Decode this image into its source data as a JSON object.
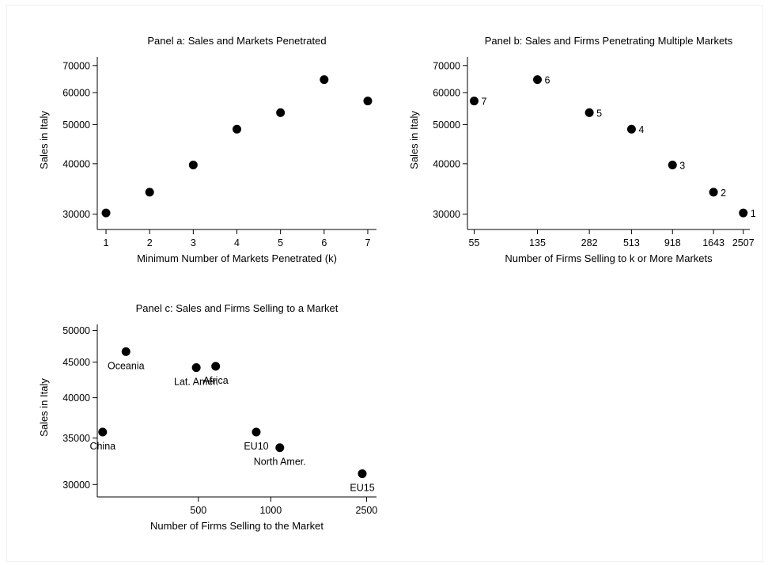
{
  "chart_data": [
    {
      "panel": "a",
      "type": "scatter",
      "title": "Panel a: Sales and Markets Penetrated",
      "xlabel": "Minimum Number of Markets Penetrated (k)",
      "ylabel": "Sales in Italy",
      "y_scale": "log",
      "xlim": [
        0.8,
        7.2
      ],
      "ylim": [
        28500,
        73500
      ],
      "xticks": [
        1,
        2,
        3,
        4,
        5,
        6,
        7
      ],
      "xtick_labels": [
        "1",
        "2",
        "3",
        "4",
        "5",
        "6",
        "7"
      ],
      "yticks": [
        30000,
        40000,
        50000,
        60000,
        70000
      ],
      "ytick_labels": [
        "30000",
        "40000",
        "50000",
        "60000",
        "70000"
      ],
      "points": [
        {
          "x": 1,
          "y": 30200
        },
        {
          "x": 2,
          "y": 34000
        },
        {
          "x": 3,
          "y": 39700
        },
        {
          "x": 4,
          "y": 48700
        },
        {
          "x": 5,
          "y": 53500
        },
        {
          "x": 6,
          "y": 64600
        },
        {
          "x": 7,
          "y": 57200
        }
      ]
    },
    {
      "panel": "b",
      "type": "scatter",
      "title": "Panel b: Sales and Firms Penetrating Multiple Markets",
      "xlabel": "Number of Firms Selling to k or More Markets",
      "ylabel": "Sales in Italy",
      "x_scale": "log",
      "y_scale": "log",
      "xlim": [
        50,
        2750
      ],
      "ylim": [
        28500,
        73500
      ],
      "xticks": [
        55,
        135,
        282,
        513,
        918,
        1643,
        2507
      ],
      "xtick_labels": [
        "55",
        "135",
        "282",
        "513",
        "918",
        "1643",
        "2507"
      ],
      "yticks": [
        30000,
        40000,
        50000,
        60000,
        70000
      ],
      "ytick_labels": [
        "30000",
        "40000",
        "50000",
        "60000",
        "70000"
      ],
      "points": [
        {
          "x": 2507,
          "y": 30200,
          "label": "1"
        },
        {
          "x": 1643,
          "y": 34000,
          "label": "2"
        },
        {
          "x": 918,
          "y": 39700,
          "label": "3"
        },
        {
          "x": 513,
          "y": 48700,
          "label": "4"
        },
        {
          "x": 282,
          "y": 53500,
          "label": "5"
        },
        {
          "x": 135,
          "y": 64600,
          "label": "6"
        },
        {
          "x": 55,
          "y": 57200,
          "label": "7"
        }
      ]
    },
    {
      "panel": "c",
      "type": "scatter",
      "title": "Panel c: Sales and Firms Selling to a Market",
      "xlabel": "Number of Firms Selling to the Market",
      "ylabel": "Sales in Italy",
      "x_scale": "log",
      "y_scale": "log",
      "xlim": [
        190,
        2750
      ],
      "ylim": [
        29400,
        51000
      ],
      "xticks": [
        500,
        1000,
        2500
      ],
      "xtick_labels": [
        "500",
        "1000",
        "2500"
      ],
      "yticks": [
        30000,
        35000,
        40000,
        45000,
        50000
      ],
      "ytick_labels": [
        "30000",
        "35000",
        "40000",
        "45000",
        "50000"
      ],
      "points": [
        {
          "x": 250,
          "y": 46600,
          "label": "Oceania",
          "label_pos": "below"
        },
        {
          "x": 200,
          "y": 35700,
          "label": "China",
          "label_pos": "below"
        },
        {
          "x": 490,
          "y": 44200,
          "label": "Lat. Amer.",
          "label_pos": "below"
        },
        {
          "x": 590,
          "y": 44400,
          "label": "Africa",
          "label_pos": "below"
        },
        {
          "x": 870,
          "y": 35700,
          "label": "EU10",
          "label_pos": "below"
        },
        {
          "x": 1090,
          "y": 33900,
          "label": "North Amer.",
          "label_pos": "below"
        },
        {
          "x": 2400,
          "y": 31100,
          "label": "EU15",
          "label_pos": "below"
        }
      ]
    }
  ]
}
